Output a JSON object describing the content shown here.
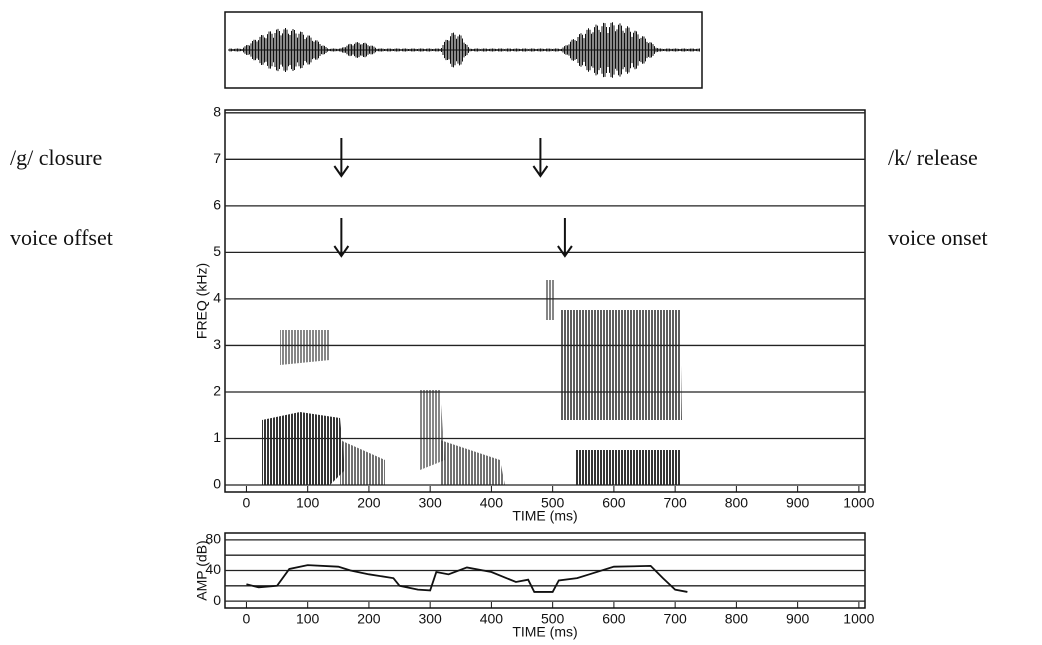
{
  "chart_data": [
    {
      "type": "spectrogram",
      "x_label": "TIME (ms)",
      "y_label": "FREQ (kHz)",
      "xlim": [
        -35,
        1010
      ],
      "xticks": [
        0,
        100,
        200,
        300,
        400,
        500,
        600,
        700,
        800,
        900,
        1000
      ],
      "ylim": [
        -0.15,
        8.06
      ],
      "yticks": [
        0,
        1,
        2,
        3,
        4,
        5,
        6,
        7,
        8
      ],
      "grid": true,
      "annotations": [
        {
          "text": "/g/ closure",
          "x": 155
        },
        {
          "text": "/k/ release",
          "x": 480
        },
        {
          "text": "voice offset",
          "x": 155
        },
        {
          "text": "voice onset",
          "x": 520
        }
      ]
    },
    {
      "type": "line",
      "x_label": "TIME (ms)",
      "y_label": "AMP (dB)",
      "xlim": [
        -35,
        1010
      ],
      "xticks": [
        0,
        100,
        200,
        300,
        400,
        500,
        600,
        700,
        800,
        900,
        1000
      ],
      "ylim": [
        -9,
        89
      ],
      "yticks": [
        0,
        40,
        80
      ],
      "minor_yticks": [
        20,
        60
      ],
      "grid": true,
      "color": "#111111",
      "x": [
        0,
        20,
        50,
        70,
        100,
        150,
        170,
        200,
        240,
        250,
        280,
        300,
        310,
        330,
        360,
        400,
        440,
        460,
        470,
        500,
        510,
        540,
        560,
        600,
        660,
        680,
        700,
        720
      ],
      "values": [
        22,
        18,
        20,
        42,
        47,
        45,
        40,
        35,
        30,
        20,
        15,
        14,
        38,
        35,
        44,
        38,
        25,
        28,
        12,
        12,
        27,
        30,
        35,
        45,
        46,
        30,
        15,
        12
      ]
    }
  ]
}
